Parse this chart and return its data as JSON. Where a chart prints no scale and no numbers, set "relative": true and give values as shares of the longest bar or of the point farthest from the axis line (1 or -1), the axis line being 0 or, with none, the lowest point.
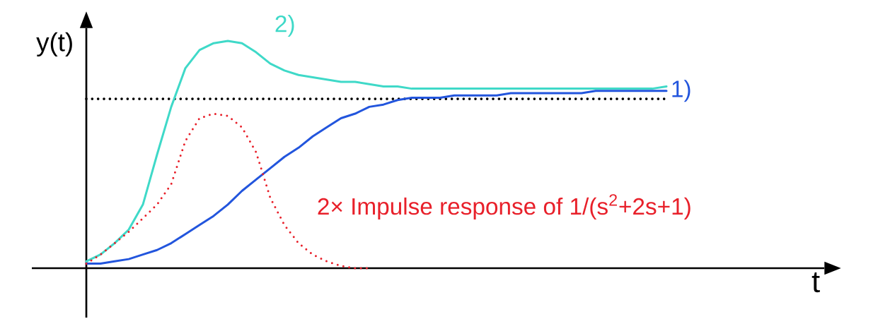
{
  "chart_data": {
    "type": "line",
    "relative": true,
    "xlabel": "t",
    "ylabel": "y(t)",
    "categories": [
      null,
      null,
      null,
      null,
      null,
      null,
      null,
      null,
      null,
      null,
      null,
      null,
      null,
      null,
      null,
      null,
      null,
      null,
      null,
      null,
      null,
      null,
      null,
      null,
      null,
      null,
      null,
      null,
      null,
      null,
      null,
      null,
      null,
      null,
      null,
      null,
      null,
      null,
      null,
      null,
      null,
      null
    ],
    "series": [
      {
        "name": "1)",
        "color": "#2255dd",
        "line_style": "solid",
        "values": [
          0.02,
          0.02,
          0.03,
          0.04,
          0.06,
          0.08,
          0.11,
          0.15,
          0.19,
          0.23,
          0.28,
          0.34,
          0.39,
          0.44,
          0.49,
          0.53,
          0.58,
          0.62,
          0.66,
          0.68,
          0.71,
          0.72,
          0.74,
          0.75,
          0.75,
          0.75,
          0.76,
          0.76,
          0.76,
          0.76,
          0.77,
          0.77,
          0.77,
          0.77,
          0.77,
          0.77,
          0.78,
          0.78,
          0.78,
          0.78,
          0.78,
          0.78
        ]
      },
      {
        "name": "2)",
        "color": "#3fd9c8",
        "line_style": "solid",
        "values": [
          0.03,
          0.06,
          0.11,
          0.17,
          0.28,
          0.5,
          0.71,
          0.88,
          0.96,
          0.99,
          1.0,
          0.99,
          0.95,
          0.9,
          0.87,
          0.85,
          0.84,
          0.83,
          0.82,
          0.82,
          0.81,
          0.8,
          0.8,
          0.79,
          0.79,
          0.79,
          0.79,
          0.79,
          0.79,
          0.79,
          0.79,
          0.79,
          0.79,
          0.79,
          0.79,
          0.79,
          0.79,
          0.79,
          0.79,
          0.79,
          0.79,
          0.8
        ]
      },
      {
        "name": "2× Impulse response of 1/(s$^{2}$+2s+1)",
        "color": "#e8202a",
        "line_style": "dotted",
        "values": [
          0.02,
          0.06,
          0.11,
          0.16,
          0.22,
          0.28,
          0.37,
          0.56,
          0.66,
          0.68,
          0.67,
          0.62,
          0.51,
          0.31,
          0.19,
          0.11,
          0.06,
          0.03,
          0.01,
          0,
          0,
          null,
          null,
          null,
          null,
          null,
          null,
          null,
          null,
          null,
          null,
          null,
          null,
          null,
          null,
          null,
          null,
          null,
          null,
          null,
          null,
          null
        ]
      }
    ],
    "ref_lines": [
      {
        "axis": "y",
        "value": 0.745,
        "color": "#000000",
        "line_style": "dotted"
      }
    ]
  }
}
